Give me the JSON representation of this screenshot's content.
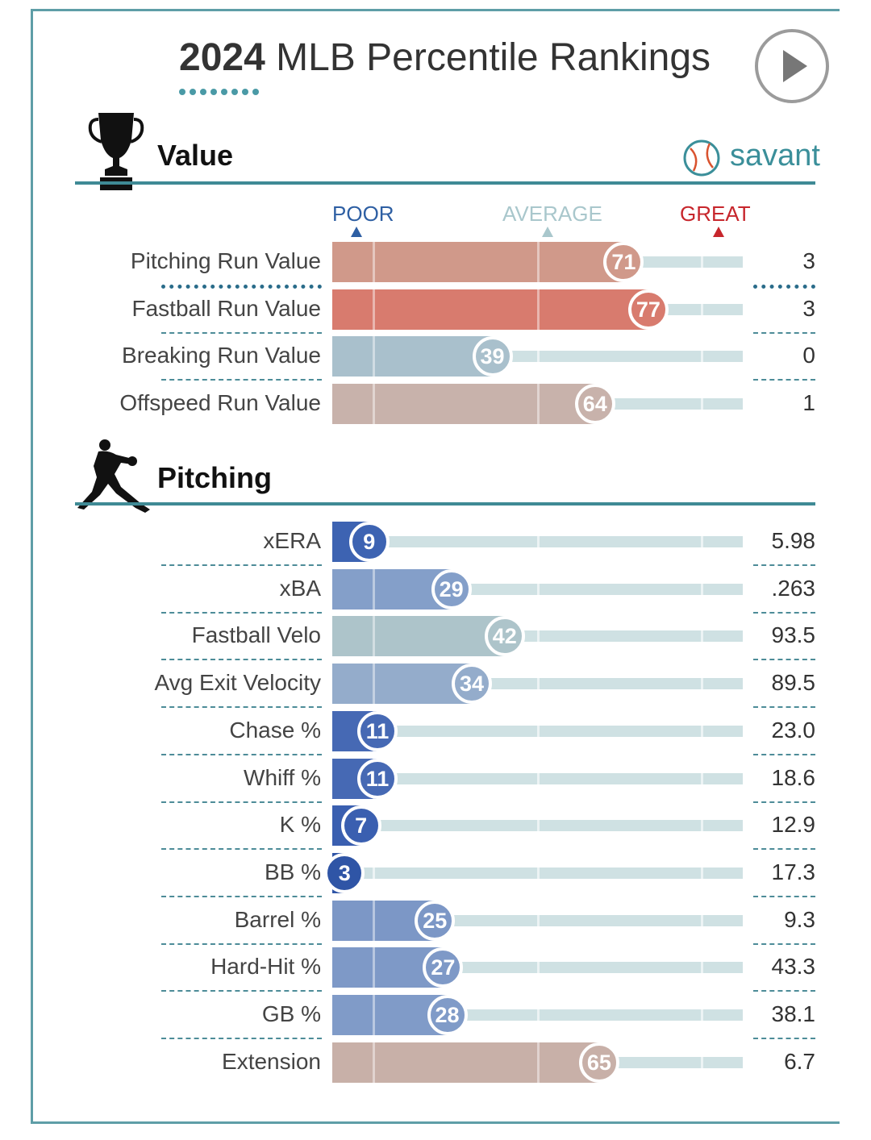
{
  "header": {
    "title_year": "2024",
    "title_rest": " MLB Percentile Rankings"
  },
  "icons": {
    "play": "play-icon",
    "trophy": "trophy-icon",
    "pitcher": "pitcher-silhouette-icon",
    "logo": "baseball-logo-icon"
  },
  "brand": {
    "logo_text": "savant",
    "accent": "#3b8f9a"
  },
  "legend": {
    "poor": "POOR",
    "average": "AVERAGE",
    "great": "GREAT",
    "poor_color": "#2e5fa3",
    "average_color": "#a9c7cc",
    "great_color": "#c7262c"
  },
  "sections": [
    {
      "title": "Value"
    },
    {
      "title": "Pitching"
    }
  ],
  "chart_data": {
    "type": "bar",
    "orientation": "horizontal",
    "percentile_range": [
      0,
      100
    ],
    "value_rows": [
      {
        "label": "Pitching Run Value",
        "percentile": 71,
        "value": "3",
        "color": "#d0998a"
      },
      {
        "label": "Fastball Run Value",
        "percentile": 77,
        "value": "3",
        "color": "#d87b6e"
      },
      {
        "label": "Breaking Run Value",
        "percentile": 39,
        "value": "0",
        "color": "#a9c0cc"
      },
      {
        "label": "Offspeed Run Value",
        "percentile": 64,
        "value": "1",
        "color": "#c8b2ab"
      }
    ],
    "pitching_rows": [
      {
        "label": "xERA",
        "percentile": 9,
        "value": "5.98",
        "color": "#3d63b2"
      },
      {
        "label": "xBA",
        "percentile": 29,
        "value": ".263",
        "color": "#849fc9"
      },
      {
        "label": "Fastball Velo",
        "percentile": 42,
        "value": "93.5",
        "color": "#adc4ca"
      },
      {
        "label": "Avg Exit Velocity",
        "percentile": 34,
        "value": "89.5",
        "color": "#94accb"
      },
      {
        "label": "Chase %",
        "percentile": 11,
        "value": "23.0",
        "color": "#4669b4"
      },
      {
        "label": "Whiff %",
        "percentile": 11,
        "value": "18.6",
        "color": "#4669b4"
      },
      {
        "label": "K %",
        "percentile": 7,
        "value": "12.9",
        "color": "#3a5fb0"
      },
      {
        "label": "BB %",
        "percentile": 3,
        "value": "17.3",
        "color": "#2f55a6"
      },
      {
        "label": "Barrel %",
        "percentile": 25,
        "value": "9.3",
        "color": "#7c97c6"
      },
      {
        "label": "Hard-Hit %",
        "percentile": 27,
        "value": "43.3",
        "color": "#7e99c7"
      },
      {
        "label": "GB %",
        "percentile": 28,
        "value": "38.1",
        "color": "#809bc8"
      },
      {
        "label": "Extension",
        "percentile": 65,
        "value": "6.7",
        "color": "#c8b0a8"
      }
    ]
  }
}
